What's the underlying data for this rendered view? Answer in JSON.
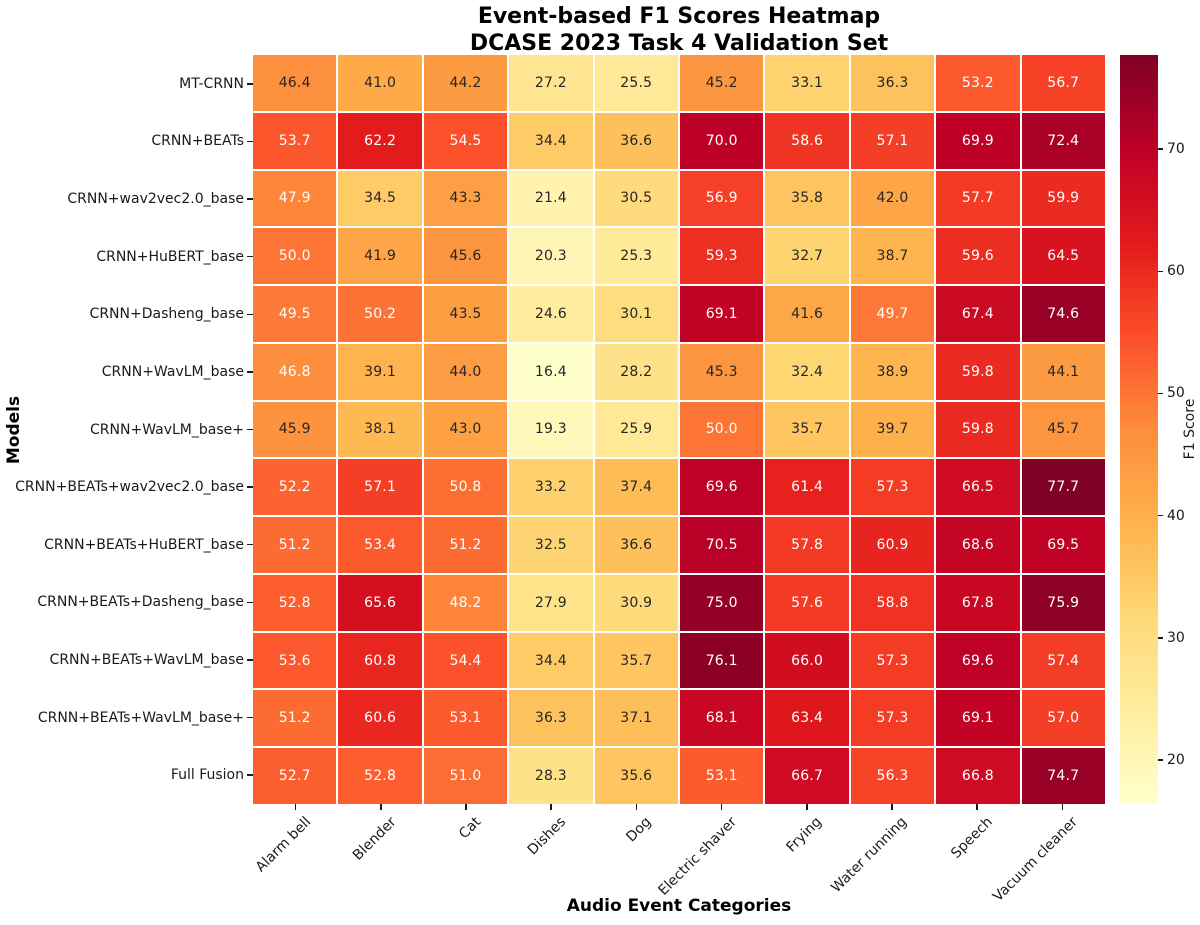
{
  "title": {
    "line1": "Event-based F1 Scores Heatmap",
    "line2": "DCASE 2023 Task 4 Validation Set"
  },
  "chart_data": {
    "type": "heatmap",
    "title": "Event-based F1 Scores Heatmap\nDCASE 2023 Task 4 Validation Set",
    "xlabel": "Audio Event Categories",
    "ylabel": "Models",
    "colormap": "YlOrRd",
    "vmin": 16.4,
    "vmax": 77.7,
    "value_format": "one_decimal",
    "grid": false,
    "columns": [
      "Alarm bell",
      "Blender",
      "Cat",
      "Dishes",
      "Dog",
      "Electric shaver",
      "Frying",
      "Water running",
      "Speech",
      "Vacuum cleaner"
    ],
    "rows": [
      "MT-CRNN",
      "CRNN+BEATs",
      "CRNN+wav2vec2.0_base",
      "CRNN+HuBERT_base",
      "CRNN+Dasheng_base",
      "CRNN+WavLM_base",
      "CRNN+WavLM_base+",
      "CRNN+BEATs+wav2vec2.0_base",
      "CRNN+BEATs+HuBERT_base",
      "CRNN+BEATs+Dasheng_base",
      "CRNN+BEATs+WavLM_base",
      "CRNN+BEATs+WavLM_base+",
      "Full Fusion"
    ],
    "values": [
      [
        46.4,
        41.0,
        44.2,
        27.2,
        25.5,
        45.2,
        33.1,
        36.3,
        53.2,
        56.7
      ],
      [
        53.7,
        62.2,
        54.5,
        34.4,
        36.6,
        70.0,
        58.6,
        57.1,
        69.9,
        72.4
      ],
      [
        47.9,
        34.5,
        43.3,
        21.4,
        30.5,
        56.9,
        35.8,
        42.0,
        57.7,
        59.9
      ],
      [
        50.0,
        41.9,
        45.6,
        20.3,
        25.3,
        59.3,
        32.7,
        38.7,
        59.6,
        64.5
      ],
      [
        49.5,
        50.2,
        43.5,
        24.6,
        30.1,
        69.1,
        41.6,
        49.7,
        67.4,
        74.6
      ],
      [
        46.8,
        39.1,
        44.0,
        16.4,
        28.2,
        45.3,
        32.4,
        38.9,
        59.8,
        44.1
      ],
      [
        45.9,
        38.1,
        43.0,
        19.3,
        25.9,
        50.0,
        35.7,
        39.7,
        59.8,
        45.7
      ],
      [
        52.2,
        57.1,
        50.8,
        33.2,
        37.4,
        69.6,
        61.4,
        57.3,
        66.5,
        77.7
      ],
      [
        51.2,
        53.4,
        51.2,
        32.5,
        36.6,
        70.5,
        57.8,
        60.9,
        68.6,
        69.5
      ],
      [
        52.8,
        65.6,
        48.2,
        27.9,
        30.9,
        75.0,
        57.6,
        58.8,
        67.8,
        75.9
      ],
      [
        53.6,
        60.8,
        54.4,
        34.4,
        35.7,
        76.1,
        66.0,
        57.3,
        69.6,
        57.4
      ],
      [
        51.2,
        60.6,
        53.1,
        36.3,
        37.1,
        68.1,
        63.4,
        57.3,
        69.1,
        57.0
      ],
      [
        52.7,
        52.8,
        51.0,
        28.3,
        35.6,
        53.1,
        66.7,
        56.3,
        66.8,
        74.7
      ]
    ],
    "colorbar": {
      "label": "F1 Score",
      "ticks": [
        20,
        30,
        40,
        50,
        60,
        70
      ],
      "position": "right"
    },
    "legend": "none"
  },
  "colors": {
    "background": "#ffffff",
    "colormap_stops": [
      "#ffffcc",
      "#ffeda0",
      "#fed976",
      "#feb24c",
      "#fd8d3c",
      "#fc4e2a",
      "#e31a1c",
      "#bd0026",
      "#800026"
    ],
    "cell_dark_text": "#262626",
    "cell_light_text": "#ffffff",
    "gridline": "#ffffff",
    "tick_text": "#1a1a1a"
  }
}
